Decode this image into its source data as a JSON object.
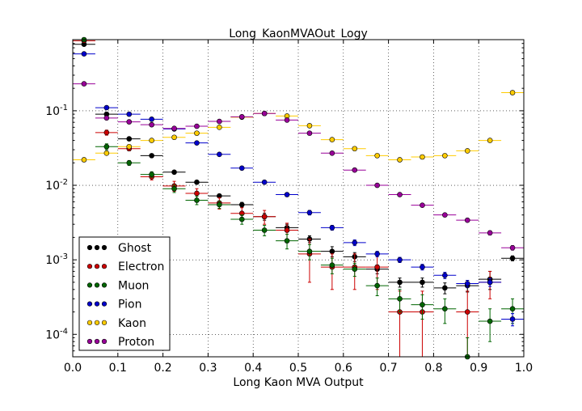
{
  "chart_data": {
    "type": "scatter",
    "title": "Long_KaonMVAOut_Logy",
    "xlabel": "Long Kaon MVA Output",
    "ylabel": "",
    "xlim": [
      0.0,
      1.0
    ],
    "ylim": [
      5e-05,
      0.9
    ],
    "yscale": "log",
    "grid": true,
    "legend_position": "lower-left",
    "bin_half_width": 0.025,
    "x_ticks": [
      "0.0",
      "0.1",
      "0.2",
      "0.3",
      "0.4",
      "0.5",
      "0.6",
      "0.7",
      "0.8",
      "0.9",
      "1.0"
    ],
    "y_ticks": [
      {
        "value": 0.0001,
        "base": "10",
        "exp": "-4"
      },
      {
        "value": 0.001,
        "base": "10",
        "exp": "-3"
      },
      {
        "value": 0.01,
        "base": "10",
        "exp": "-2"
      },
      {
        "value": 0.1,
        "base": "10",
        "exp": "-1"
      }
    ],
    "x": [
      0.025,
      0.075,
      0.125,
      0.175,
      0.225,
      0.275,
      0.325,
      0.375,
      0.425,
      0.475,
      0.525,
      0.575,
      0.625,
      0.675,
      0.725,
      0.775,
      0.825,
      0.875,
      0.925,
      0.975
    ],
    "series": [
      {
        "name": "Ghost",
        "color": "#000000",
        "values": [
          0.78,
          0.09,
          0.042,
          0.025,
          0.015,
          0.011,
          0.0072,
          0.0055,
          0.0038,
          0.0027,
          0.0019,
          0.0013,
          0.0011,
          0.00075,
          0.0005,
          0.0005,
          0.00042,
          0.00045,
          0.00055,
          0.00105
        ],
        "errors": [
          0.03,
          0.004,
          0.002,
          0.0012,
          0.0008,
          0.0006,
          0.0004,
          0.0004,
          0.0004,
          0.0003,
          0.0002,
          0.0002,
          0.00015,
          0.0001,
          7e-05,
          7e-05,
          7e-05,
          8e-05,
          0.00015,
          8e-05
        ]
      },
      {
        "name": "Electron",
        "color": "#cc0000",
        "values": [
          0.87,
          0.051,
          0.031,
          0.013,
          0.0098,
          0.0078,
          0.0058,
          0.0042,
          0.0038,
          0.0025,
          0.0012,
          0.0008,
          0.0008,
          0.0008,
          0.0002,
          0.0002,
          null,
          0.0002,
          0.0005,
          null
        ],
        "errors": [
          0.03,
          0.004,
          0.002,
          0.0012,
          0.0015,
          0.0012,
          0.001,
          0.0008,
          0.0008,
          0.0006,
          0.0007,
          0.0004,
          0.0004,
          0.0004,
          0.00018,
          0.00018,
          null,
          0.00018,
          0.0002,
          null
        ]
      },
      {
        "name": "Muon",
        "color": "#006600",
        "values": [
          0.9,
          0.033,
          0.02,
          0.014,
          0.009,
          0.0063,
          0.0055,
          0.0035,
          0.0025,
          0.0018,
          0.0013,
          0.00085,
          0.00075,
          0.00045,
          0.0003,
          0.00025,
          0.00022,
          5e-05,
          0.00015,
          0.00022
        ],
        "errors": [
          0.03,
          0.003,
          0.0015,
          0.0012,
          0.001,
          0.0008,
          0.0006,
          0.0005,
          0.0004,
          0.0004,
          0.0003,
          0.0002,
          0.00015,
          0.00012,
          0.0001,
          9e-05,
          8e-05,
          4e-05,
          7e-05,
          8e-05
        ]
      },
      {
        "name": "Pion",
        "color": "#0000cc",
        "values": [
          0.58,
          0.11,
          0.09,
          0.077,
          0.057,
          0.037,
          0.026,
          0.017,
          0.011,
          0.0075,
          0.0043,
          0.0027,
          0.0017,
          0.0012,
          0.001,
          0.0008,
          0.00062,
          0.00048,
          0.0005,
          0.00016
        ],
        "errors": [
          0.02,
          0.004,
          0.003,
          0.003,
          0.002,
          0.0015,
          0.001,
          0.0008,
          0.0006,
          0.0004,
          0.0003,
          0.0002,
          0.00015,
          0.0001,
          8e-05,
          7e-05,
          6e-05,
          5e-05,
          6e-05,
          3e-05
        ]
      },
      {
        "name": "Kaon",
        "color": "#ffcc00",
        "values": [
          0.022,
          0.027,
          0.033,
          0.04,
          0.044,
          0.05,
          0.06,
          0.082,
          0.092,
          0.085,
          0.063,
          0.041,
          0.031,
          0.025,
          0.022,
          0.024,
          0.025,
          0.029,
          0.04,
          0.175
        ],
        "errors": [
          0.001,
          0.0012,
          0.0012,
          0.0014,
          0.0015,
          0.0016,
          0.002,
          0.0025,
          0.003,
          0.0025,
          0.002,
          0.0015,
          0.0012,
          0.001,
          0.0009,
          0.0009,
          0.001,
          0.0012,
          0.0015,
          0.005
        ]
      },
      {
        "name": "Proton",
        "color": "#990099",
        "values": [
          0.23,
          0.08,
          0.071,
          0.065,
          0.058,
          0.062,
          0.072,
          0.083,
          0.092,
          0.075,
          0.05,
          0.027,
          0.016,
          0.01,
          0.0075,
          0.0054,
          0.004,
          0.0034,
          0.0023,
          0.00145
        ],
        "errors": [
          0.01,
          0.003,
          0.003,
          0.003,
          0.002,
          0.002,
          0.003,
          0.003,
          0.003,
          0.003,
          0.002,
          0.001,
          0.0007,
          0.0004,
          0.0003,
          0.00025,
          0.0002,
          0.00018,
          0.00015,
          0.0001
        ]
      }
    ]
  }
}
